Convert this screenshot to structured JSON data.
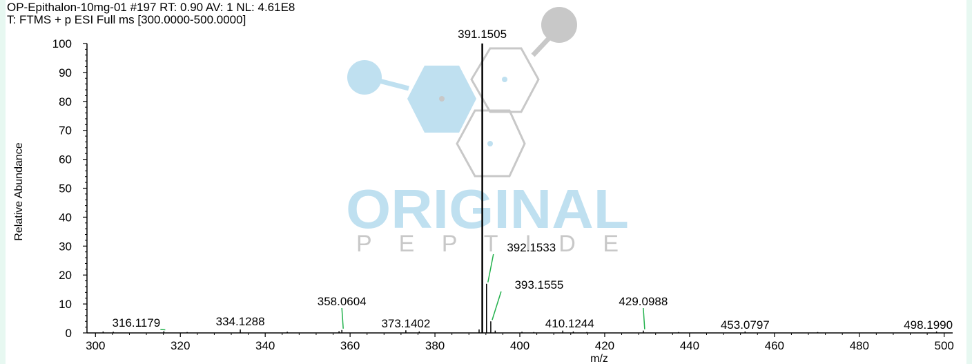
{
  "header": {
    "line1": "OP-Epithalon-10mg-01 #197 RT: 0.90 AV: 1 NL: 4.61E8",
    "line2": "T: FTMS + p ESI Full ms [300.0000-500.0000]"
  },
  "watermark": {
    "word": "ORIGINAL",
    "sub": "P E P T I D E",
    "colors": {
      "blue": "#bfe0f0",
      "gray": "#c8c8c8"
    }
  },
  "chart_data": {
    "type": "bar",
    "xlabel": "m/z",
    "ylabel": "Relative Abundance",
    "xlim": [
      298,
      502
    ],
    "ylim": [
      0,
      100
    ],
    "x_ticks": [
      300,
      320,
      340,
      360,
      380,
      400,
      420,
      440,
      460,
      480,
      500
    ],
    "y_ticks": [
      0,
      10,
      20,
      30,
      40,
      50,
      60,
      70,
      80,
      90,
      100
    ],
    "series": [
      {
        "x": [
          301.8,
          304.2,
          316.1179,
          321.6,
          334.1288,
          345.2,
          357.4,
          358.0604,
          373.1402,
          376.3,
          390.4,
          391.1505,
          392.1533,
          393.1555,
          394.2,
          400.5,
          403.3,
          410.1244,
          412.6,
          415.8,
          429.0988,
          437.4,
          453.0797,
          470.2,
          498.199
        ],
        "values": [
          0.5,
          0.4,
          0.6,
          0.3,
          1.2,
          0.4,
          0.6,
          1.0,
          0.9,
          0.5,
          1.2,
          100,
          17.0,
          4.0,
          0.8,
          0.4,
          0.3,
          0.8,
          0.5,
          0.3,
          0.8,
          0.3,
          0.5,
          0.3,
          0.5
        ]
      }
    ],
    "annotations": [
      {
        "text": "391.1505",
        "x": 391.1505,
        "y": 100
      },
      {
        "text": "392.1533",
        "x": 392.1533,
        "y": 17.0
      },
      {
        "text": "393.1555",
        "x": 393.1555,
        "y": 4.0
      },
      {
        "text": "358.0604",
        "x": 358.0604,
        "y": 1.0
      },
      {
        "text": "429.0988",
        "x": 429.0988,
        "y": 0.8
      },
      {
        "text": "316.1179",
        "x": 316.1179,
        "y": 0.6
      },
      {
        "text": "334.1288",
        "x": 334.1288,
        "y": 1.2
      },
      {
        "text": "373.1402",
        "x": 373.1402,
        "y": 0.9
      },
      {
        "text": "410.1244",
        "x": 410.1244,
        "y": 0.8
      },
      {
        "text": "453.0797",
        "x": 453.0797,
        "y": 0.5
      },
      {
        "text": "498.1990",
        "x": 498.199,
        "y": 0.5
      }
    ],
    "colors": {
      "bars": "#000000",
      "leader": "#22b14c",
      "axis": "#000000"
    }
  }
}
